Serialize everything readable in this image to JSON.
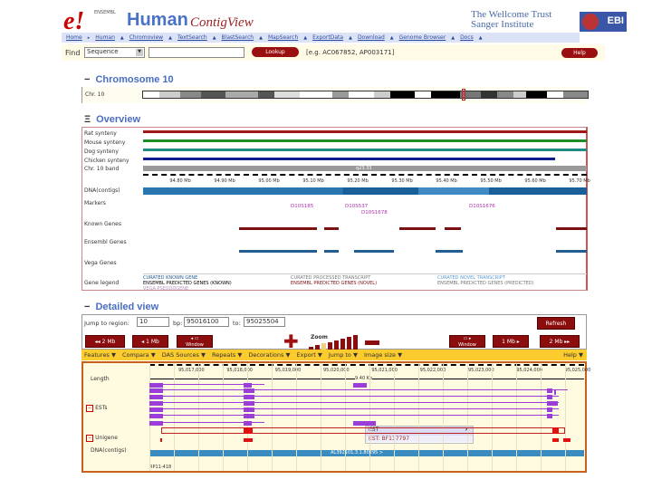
{
  "header": {
    "logo": "e!",
    "logo_small": "ENSEMBL",
    "species": "Human",
    "view": "ContigView",
    "sanger_line1": "The Wellcome Trust",
    "sanger_line2": "Sanger Institute",
    "ebi": "EBI"
  },
  "nav": [
    "Home",
    "Human",
    "Chromoview",
    "TextSearch",
    "BlastSearch",
    "MapSearch",
    "ExportData",
    "Download",
    "Genome Browser",
    "Docs"
  ],
  "find": {
    "label": "Find",
    "select": "Sequence",
    "input": "",
    "lookup": "Lookup",
    "example": "[e.g. AC067852, AP003171]",
    "help": "Help"
  },
  "chromosome": {
    "title": "Chromosome 10",
    "label": "Chr. 10",
    "toggle": "−"
  },
  "overview": {
    "title": "Overview",
    "toggle": "Ξ",
    "tracks": [
      "Rat synteny",
      "Mouse synteny",
      "Dog synteny",
      "Chicken synteny",
      "Chr. 10 band",
      "DNA(contigs)",
      "Markers",
      "Known Genes",
      "Ensembl Genes",
      "Vega Genes",
      "Gene legend"
    ],
    "scale": [
      "94.80 Mb",
      "94.90 Mb",
      "95.00 Mb",
      "95.10 Mb",
      "95.20 Mb",
      "95.30 Mb",
      "95.40 Mb",
      "95.50 Mb",
      "95.60 Mb",
      "95.70 Mb"
    ],
    "band": "q23.33",
    "markers": [
      "D10S185",
      "D10S537",
      "D10S1678",
      "D10S1676"
    ],
    "legend": [
      "CURATED KNOWN GENE",
      "ENSEMBL PREDICTED GENES (KNOWN)",
      "CURATED PROCESSED TRANSCRIPT",
      "ENSEMBL PREDICTED GENES (NOVEL)",
      "CURATED NOVEL TRANSCRIPT",
      "ENSEMBL PREDICTED GENES (PREDICTED)",
      "VEGA PSEUDOGENE"
    ],
    "colors": {
      "rat": "#a01818",
      "mouse": "#1f8c2a",
      "dog": "#218a86",
      "chicken": "#0e1c8c",
      "band": "#999999",
      "contig": "#1f6ea8",
      "gene": "#7a1010"
    }
  },
  "detail": {
    "title": "Detailed view",
    "toggle": "−",
    "jump_label": "Jump to region:",
    "chr": "10",
    "bp_label": "bp:",
    "start": "95016100",
    "to_label": "to:",
    "end": "95025504",
    "refresh": "Refresh",
    "nav_buttons": [
      "2 Mb",
      "1 Mb",
      "Window",
      "Window",
      "1 Mb",
      "2 Mb"
    ],
    "zoom": "Zoom",
    "menus": [
      "Features ▼",
      "Compara ▼",
      "DAS Sources ▼",
      "Repeats ▼",
      "Decorations ▼",
      "Export ▼",
      "Jump to ▼",
      "Image size ▼"
    ],
    "help": "Help ▼",
    "scale": [
      "95,017,000",
      "95,018,000",
      "95,019,000",
      "95,020,000",
      "95,021,000",
      "95,022,000",
      "95,023,000",
      "95,024,000",
      "95,025,000"
    ],
    "length": "9.40 Kb",
    "tracks": [
      "Length",
      "ESTs",
      "Unigene",
      "DNA(contigs)"
    ],
    "contig": "AL392101.3.1.80295 >",
    "bottom_label": "RP11-418",
    "popup": {
      "title": "EST",
      "close": "✕",
      "item": "EST: BF137797"
    }
  }
}
